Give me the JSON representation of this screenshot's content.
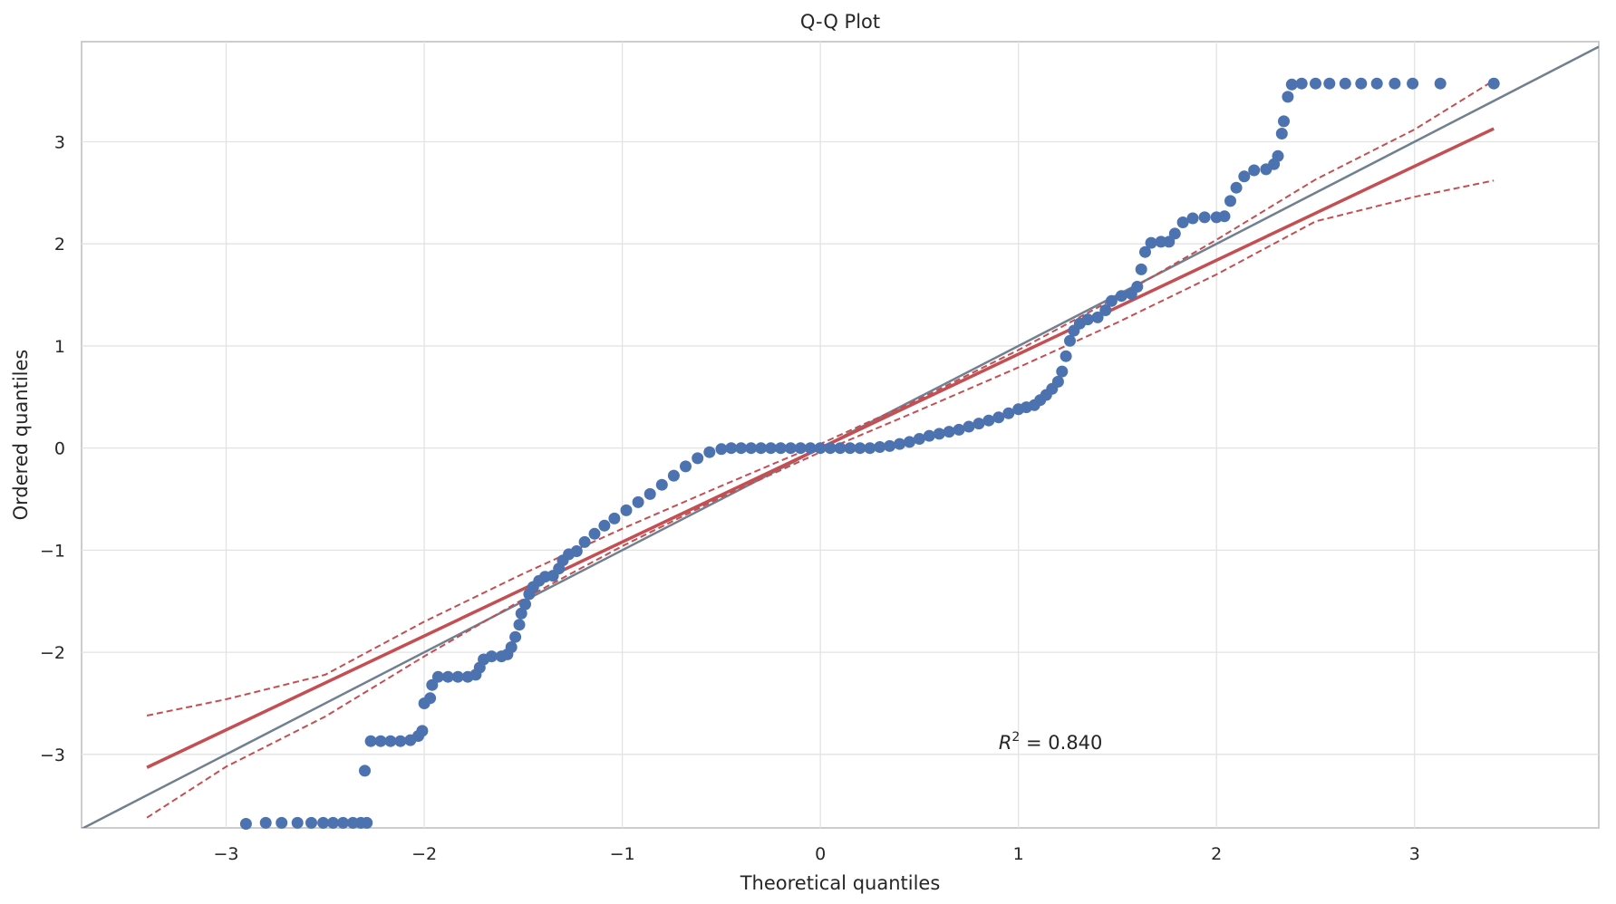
{
  "chart_data": {
    "type": "scatter",
    "title": "Q-Q Plot",
    "xlabel": "Theoretical quantiles",
    "ylabel": "Ordered quantiles",
    "xlim": [
      -3.73,
      3.93
    ],
    "ylim": [
      -3.72,
      3.98
    ],
    "grid": true,
    "x_ticks": [
      -3,
      -2,
      -1,
      0,
      1,
      2,
      3
    ],
    "y_ticks": [
      -3,
      -2,
      -1,
      0,
      1,
      2,
      3
    ],
    "x_tick_labels": [
      "−3",
      "−2",
      "−1",
      "0",
      "1",
      "2",
      "3"
    ],
    "y_tick_labels": [
      "−3",
      "−2",
      "−1",
      "0",
      "1",
      "2",
      "3"
    ],
    "annotation": {
      "prefix": "R",
      "superscript": "2",
      "text": " = 0.840",
      "x": 0.9,
      "y": -2.95
    },
    "reference_line": {
      "name": "y = x",
      "color": "#708090",
      "x": [
        -3.73,
        3.93
      ],
      "y": [
        -3.73,
        3.93
      ]
    },
    "fit_line": {
      "color": "#c44e52",
      "slope": 0.92,
      "intercept": 0.0,
      "x": [
        -3.4,
        3.4
      ]
    },
    "confidence_band": {
      "color": "#c44e52",
      "x": [
        -3.4,
        -3.0,
        -2.5,
        -2.0,
        -1.5,
        -1.0,
        -0.5,
        0.0,
        0.5,
        1.0,
        1.5,
        2.0,
        2.5,
        3.0,
        3.4
      ],
      "upper": [
        -2.62,
        -2.46,
        -2.22,
        -1.7,
        -1.23,
        -0.79,
        -0.37,
        0.04,
        0.48,
        0.96,
        1.48,
        2.04,
        2.63,
        3.12,
        3.6
      ],
      "lower": [
        -3.62,
        -3.12,
        -2.63,
        -2.04,
        -1.48,
        -0.96,
        -0.48,
        -0.04,
        0.37,
        0.79,
        1.23,
        1.7,
        2.22,
        2.46,
        2.62
      ]
    },
    "series": [
      {
        "color": "#4c72b0",
        "points": [
          [
            -2.9,
            -3.68
          ],
          [
            -2.8,
            -3.67
          ],
          [
            -2.72,
            -3.67
          ],
          [
            -2.64,
            -3.67
          ],
          [
            -2.57,
            -3.67
          ],
          [
            -2.51,
            -3.67
          ],
          [
            -2.46,
            -3.67
          ],
          [
            -2.41,
            -3.67
          ],
          [
            -2.36,
            -3.67
          ],
          [
            -2.32,
            -3.67
          ],
          [
            -2.29,
            -3.67
          ],
          [
            -2.3,
            -3.16
          ],
          [
            -2.27,
            -2.87
          ],
          [
            -2.22,
            -2.87
          ],
          [
            -2.17,
            -2.87
          ],
          [
            -2.12,
            -2.87
          ],
          [
            -2.07,
            -2.86
          ],
          [
            -2.03,
            -2.82
          ],
          [
            -2.01,
            -2.77
          ],
          [
            -2.0,
            -2.5
          ],
          [
            -1.97,
            -2.45
          ],
          [
            -1.96,
            -2.32
          ],
          [
            -1.93,
            -2.24
          ],
          [
            -1.88,
            -2.24
          ],
          [
            -1.83,
            -2.24
          ],
          [
            -1.78,
            -2.24
          ],
          [
            -1.74,
            -2.22
          ],
          [
            -1.72,
            -2.15
          ],
          [
            -1.7,
            -2.07
          ],
          [
            -1.66,
            -2.04
          ],
          [
            -1.61,
            -2.04
          ],
          [
            -1.58,
            -2.02
          ],
          [
            -1.56,
            -1.95
          ],
          [
            -1.54,
            -1.85
          ],
          [
            -1.52,
            -1.73
          ],
          [
            -1.51,
            -1.62
          ],
          [
            -1.49,
            -1.53
          ],
          [
            -1.47,
            -1.43
          ],
          [
            -1.45,
            -1.36
          ],
          [
            -1.42,
            -1.3
          ],
          [
            -1.39,
            -1.26
          ],
          [
            -1.35,
            -1.25
          ],
          [
            -1.32,
            -1.18
          ],
          [
            -1.3,
            -1.1
          ],
          [
            -1.27,
            -1.04
          ],
          [
            -1.23,
            -1.01
          ],
          [
            -1.19,
            -0.92
          ],
          [
            -1.14,
            -0.84
          ],
          [
            -1.09,
            -0.76
          ],
          [
            -1.04,
            -0.69
          ],
          [
            -0.98,
            -0.61
          ],
          [
            -0.92,
            -0.53
          ],
          [
            -0.86,
            -0.45
          ],
          [
            -0.8,
            -0.36
          ],
          [
            -0.74,
            -0.27
          ],
          [
            -0.68,
            -0.18
          ],
          [
            -0.62,
            -0.1
          ],
          [
            -0.56,
            -0.04
          ],
          [
            -0.5,
            -0.01
          ],
          [
            -0.45,
            0.0
          ],
          [
            -0.4,
            0.0
          ],
          [
            -0.35,
            0.0
          ],
          [
            -0.3,
            0.0
          ],
          [
            -0.25,
            0.0
          ],
          [
            -0.2,
            0.0
          ],
          [
            -0.15,
            0.0
          ],
          [
            -0.1,
            0.0
          ],
          [
            -0.05,
            0.0
          ],
          [
            0.0,
            0.0
          ],
          [
            0.05,
            0.0
          ],
          [
            0.1,
            0.0
          ],
          [
            0.15,
            0.0
          ],
          [
            0.2,
            0.0
          ],
          [
            0.25,
            0.0
          ],
          [
            0.3,
            0.01
          ],
          [
            0.35,
            0.02
          ],
          [
            0.4,
            0.04
          ],
          [
            0.45,
            0.06
          ],
          [
            0.5,
            0.09
          ],
          [
            0.55,
            0.12
          ],
          [
            0.6,
            0.14
          ],
          [
            0.65,
            0.16
          ],
          [
            0.7,
            0.18
          ],
          [
            0.75,
            0.21
          ],
          [
            0.8,
            0.24
          ],
          [
            0.85,
            0.27
          ],
          [
            0.9,
            0.3
          ],
          [
            0.95,
            0.34
          ],
          [
            1.0,
            0.38
          ],
          [
            1.04,
            0.4
          ],
          [
            1.08,
            0.42
          ],
          [
            1.11,
            0.47
          ],
          [
            1.14,
            0.52
          ],
          [
            1.17,
            0.58
          ],
          [
            1.2,
            0.65
          ],
          [
            1.22,
            0.75
          ],
          [
            1.24,
            0.9
          ],
          [
            1.26,
            1.05
          ],
          [
            1.28,
            1.15
          ],
          [
            1.31,
            1.22
          ],
          [
            1.35,
            1.26
          ],
          [
            1.4,
            1.28
          ],
          [
            1.44,
            1.35
          ],
          [
            1.47,
            1.44
          ],
          [
            1.52,
            1.49
          ],
          [
            1.57,
            1.51
          ],
          [
            1.6,
            1.58
          ],
          [
            1.62,
            1.75
          ],
          [
            1.64,
            1.92
          ],
          [
            1.67,
            2.01
          ],
          [
            1.72,
            2.02
          ],
          [
            1.76,
            2.02
          ],
          [
            1.79,
            2.1
          ],
          [
            1.83,
            2.21
          ],
          [
            1.88,
            2.25
          ],
          [
            1.94,
            2.26
          ],
          [
            2.0,
            2.26
          ],
          [
            2.04,
            2.27
          ],
          [
            2.07,
            2.42
          ],
          [
            2.1,
            2.55
          ],
          [
            2.14,
            2.66
          ],
          [
            2.19,
            2.72
          ],
          [
            2.25,
            2.73
          ],
          [
            2.29,
            2.78
          ],
          [
            2.31,
            2.86
          ],
          [
            2.33,
            3.08
          ],
          [
            2.34,
            3.2
          ],
          [
            2.36,
            3.44
          ],
          [
            2.38,
            3.56
          ],
          [
            2.43,
            3.57
          ],
          [
            2.5,
            3.57
          ],
          [
            2.57,
            3.57
          ],
          [
            2.65,
            3.57
          ],
          [
            2.73,
            3.57
          ],
          [
            2.81,
            3.57
          ],
          [
            2.9,
            3.57
          ],
          [
            2.99,
            3.57
          ],
          [
            3.13,
            3.57
          ],
          [
            3.4,
            3.57
          ]
        ]
      }
    ]
  }
}
